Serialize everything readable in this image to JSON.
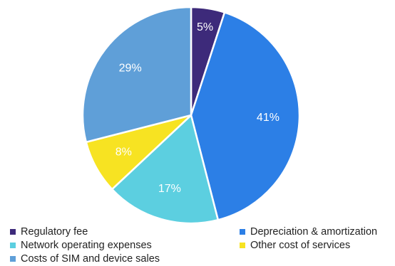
{
  "chart_data": {
    "type": "pie",
    "title": "",
    "slices": [
      {
        "name": "Regulatory fee",
        "value": 5,
        "label": "5%",
        "color": "#3d2a7a"
      },
      {
        "name": "Depreciation & amortization",
        "value": 41,
        "label": "41%",
        "color": "#2c7fe6"
      },
      {
        "name": "Network operating expenses",
        "value": 17,
        "label": "17%",
        "color": "#5ccfe0"
      },
      {
        "name": "Other cost of services",
        "value": 8,
        "label": "8%",
        "color": "#f7e322"
      },
      {
        "name": "Costs of SIM and device sales",
        "value": 29,
        "label": "29%",
        "color": "#5f9fd8"
      }
    ],
    "legend_position": "bottom"
  }
}
